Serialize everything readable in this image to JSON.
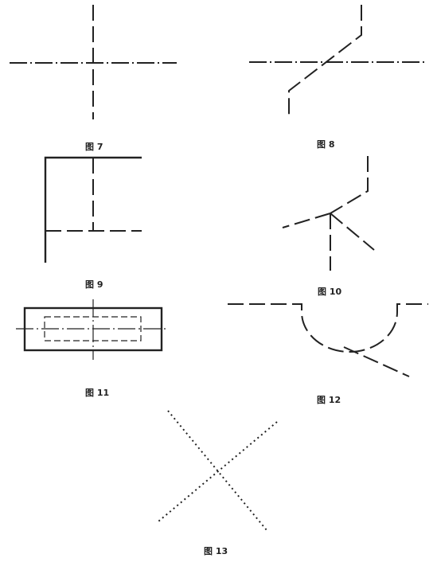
{
  "figures": {
    "fig7": {
      "caption": "图 7"
    },
    "fig8": {
      "caption": "图 8"
    },
    "fig9": {
      "caption": "图 9"
    },
    "fig10": {
      "caption": "图 10"
    },
    "fig11": {
      "caption": "图 11"
    },
    "fig12": {
      "caption": "图 12"
    },
    "fig13": {
      "caption": "图 13"
    }
  }
}
